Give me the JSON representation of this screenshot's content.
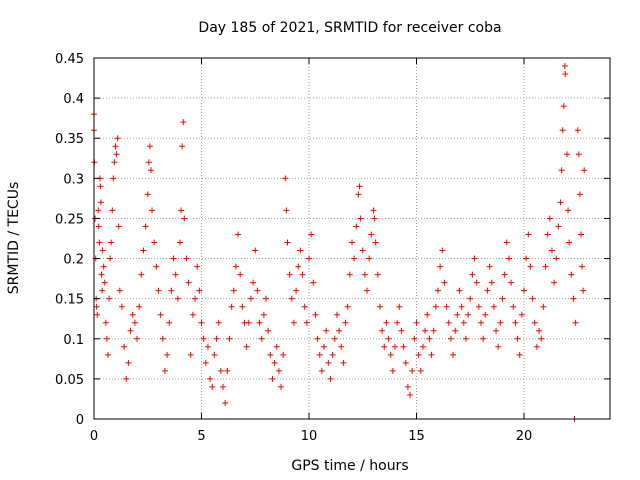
{
  "chart_data": {
    "type": "scatter",
    "title": "Day 185 of 2021, SRMTID for receiver coba",
    "xlabel": "GPS time / hours",
    "ylabel": "SRMTID / TECUs",
    "xlim": [
      0,
      24
    ],
    "ylim": [
      0,
      0.45
    ],
    "xticks": [
      0,
      5,
      10,
      15,
      20
    ],
    "yticks": [
      0,
      0.05,
      0.1,
      0.15,
      0.2,
      0.25,
      0.3,
      0.35,
      0.4,
      0.45
    ],
    "xtick_labels": [
      "0",
      "5",
      "10",
      "15",
      "20"
    ],
    "ytick_labels": [
      "0",
      "0.05",
      "0.1",
      "0.15",
      "0.2",
      "0.25",
      "0.3",
      "0.35",
      "0.4",
      "0.45"
    ],
    "grid": true,
    "marker": "plus",
    "color": "#ff0000",
    "series": [
      {
        "name": "SRMTID",
        "points": [
          [
            0.0,
            0.38
          ],
          [
            0.0,
            0.36
          ],
          [
            0.02,
            0.32
          ],
          [
            0.05,
            0.25
          ],
          [
            0.08,
            0.2
          ],
          [
            0.1,
            0.15
          ],
          [
            0.12,
            0.14
          ],
          [
            0.15,
            0.13
          ],
          [
            0.2,
            0.26
          ],
          [
            0.22,
            0.24
          ],
          [
            0.25,
            0.22
          ],
          [
            0.28,
            0.3
          ],
          [
            0.3,
            0.29
          ],
          [
            0.32,
            0.27
          ],
          [
            0.35,
            0.18
          ],
          [
            0.38,
            0.16
          ],
          [
            0.4,
            0.21
          ],
          [
            0.45,
            0.19
          ],
          [
            0.5,
            0.17
          ],
          [
            0.55,
            0.12
          ],
          [
            0.6,
            0.1
          ],
          [
            0.65,
            0.08
          ],
          [
            0.7,
            0.15
          ],
          [
            0.75,
            0.2
          ],
          [
            0.8,
            0.22
          ],
          [
            0.85,
            0.26
          ],
          [
            0.9,
            0.3
          ],
          [
            0.95,
            0.32
          ],
          [
            1.0,
            0.34
          ],
          [
            1.05,
            0.33
          ],
          [
            1.1,
            0.35
          ],
          [
            1.15,
            0.24
          ],
          [
            1.2,
            0.16
          ],
          [
            1.3,
            0.14
          ],
          [
            1.4,
            0.09
          ],
          [
            1.5,
            0.05
          ],
          [
            1.6,
            0.07
          ],
          [
            1.7,
            0.11
          ],
          [
            1.8,
            0.13
          ],
          [
            1.9,
            0.12
          ],
          [
            2.0,
            0.1
          ],
          [
            2.1,
            0.14
          ],
          [
            2.2,
            0.18
          ],
          [
            2.3,
            0.21
          ],
          [
            2.4,
            0.24
          ],
          [
            2.5,
            0.28
          ],
          [
            2.55,
            0.32
          ],
          [
            2.6,
            0.34
          ],
          [
            2.65,
            0.31
          ],
          [
            2.7,
            0.26
          ],
          [
            2.8,
            0.22
          ],
          [
            2.9,
            0.19
          ],
          [
            3.0,
            0.16
          ],
          [
            3.1,
            0.13
          ],
          [
            3.2,
            0.1
          ],
          [
            3.3,
            0.06
          ],
          [
            3.4,
            0.08
          ],
          [
            3.5,
            0.12
          ],
          [
            3.6,
            0.16
          ],
          [
            3.7,
            0.2
          ],
          [
            3.8,
            0.18
          ],
          [
            3.9,
            0.15
          ],
          [
            4.0,
            0.22
          ],
          [
            4.05,
            0.26
          ],
          [
            4.1,
            0.34
          ],
          [
            4.15,
            0.37
          ],
          [
            4.2,
            0.25
          ],
          [
            4.3,
            0.2
          ],
          [
            4.4,
            0.17
          ],
          [
            4.5,
            0.08
          ],
          [
            4.6,
            0.13
          ],
          [
            4.7,
            0.15
          ],
          [
            4.8,
            0.19
          ],
          [
            4.9,
            0.16
          ],
          [
            5.0,
            0.12
          ],
          [
            5.1,
            0.1
          ],
          [
            5.2,
            0.07
          ],
          [
            5.3,
            0.09
          ],
          [
            5.4,
            0.05
          ],
          [
            5.5,
            0.04
          ],
          [
            5.6,
            0.08
          ],
          [
            5.7,
            0.1
          ],
          [
            5.8,
            0.12
          ],
          [
            5.9,
            0.06
          ],
          [
            6.0,
            0.04
          ],
          [
            6.1,
            0.02
          ],
          [
            6.2,
            0.06
          ],
          [
            6.3,
            0.1
          ],
          [
            6.4,
            0.14
          ],
          [
            6.5,
            0.16
          ],
          [
            6.6,
            0.19
          ],
          [
            6.7,
            0.23
          ],
          [
            6.8,
            0.18
          ],
          [
            6.9,
            0.14
          ],
          [
            7.0,
            0.12
          ],
          [
            7.1,
            0.09
          ],
          [
            7.2,
            0.12
          ],
          [
            7.3,
            0.15
          ],
          [
            7.4,
            0.17
          ],
          [
            7.5,
            0.21
          ],
          [
            7.6,
            0.16
          ],
          [
            7.7,
            0.12
          ],
          [
            7.8,
            0.1
          ],
          [
            7.9,
            0.13
          ],
          [
            8.0,
            0.15
          ],
          [
            8.1,
            0.11
          ],
          [
            8.2,
            0.08
          ],
          [
            8.3,
            0.05
          ],
          [
            8.4,
            0.07
          ],
          [
            8.5,
            0.09
          ],
          [
            8.6,
            0.06
          ],
          [
            8.7,
            0.04
          ],
          [
            8.8,
            0.08
          ],
          [
            8.9,
            0.3
          ],
          [
            8.95,
            0.26
          ],
          [
            9.0,
            0.22
          ],
          [
            9.1,
            0.18
          ],
          [
            9.2,
            0.15
          ],
          [
            9.3,
            0.12
          ],
          [
            9.4,
            0.16
          ],
          [
            9.5,
            0.19
          ],
          [
            9.6,
            0.21
          ],
          [
            9.7,
            0.18
          ],
          [
            9.8,
            0.14
          ],
          [
            9.9,
            0.12
          ],
          [
            10.0,
            0.2
          ],
          [
            10.1,
            0.23
          ],
          [
            10.2,
            0.17
          ],
          [
            10.3,
            0.13
          ],
          [
            10.4,
            0.1
          ],
          [
            10.5,
            0.08
          ],
          [
            10.6,
            0.06
          ],
          [
            10.7,
            0.09
          ],
          [
            10.8,
            0.11
          ],
          [
            10.9,
            0.07
          ],
          [
            11.0,
            0.05
          ],
          [
            11.1,
            0.08
          ],
          [
            11.2,
            0.1
          ],
          [
            11.3,
            0.13
          ],
          [
            11.4,
            0.11
          ],
          [
            11.5,
            0.09
          ],
          [
            11.6,
            0.07
          ],
          [
            11.7,
            0.12
          ],
          [
            11.8,
            0.14
          ],
          [
            11.9,
            0.18
          ],
          [
            12.0,
            0.22
          ],
          [
            12.1,
            0.2
          ],
          [
            12.2,
            0.24
          ],
          [
            12.3,
            0.28
          ],
          [
            12.35,
            0.29
          ],
          [
            12.4,
            0.25
          ],
          [
            12.5,
            0.21
          ],
          [
            12.6,
            0.18
          ],
          [
            12.7,
            0.16
          ],
          [
            12.8,
            0.2
          ],
          [
            12.9,
            0.23
          ],
          [
            13.0,
            0.26
          ],
          [
            13.05,
            0.25
          ],
          [
            13.1,
            0.22
          ],
          [
            13.2,
            0.18
          ],
          [
            13.3,
            0.14
          ],
          [
            13.4,
            0.11
          ],
          [
            13.5,
            0.09
          ],
          [
            13.6,
            0.12
          ],
          [
            13.7,
            0.1
          ],
          [
            13.8,
            0.08
          ],
          [
            13.9,
            0.06
          ],
          [
            14.0,
            0.09
          ],
          [
            14.1,
            0.12
          ],
          [
            14.2,
            0.14
          ],
          [
            14.3,
            0.11
          ],
          [
            14.4,
            0.09
          ],
          [
            14.5,
            0.07
          ],
          [
            14.6,
            0.04
          ],
          [
            14.7,
            0.03
          ],
          [
            14.8,
            0.06
          ],
          [
            14.9,
            0.1
          ],
          [
            15.0,
            0.12
          ],
          [
            15.1,
            0.08
          ],
          [
            15.2,
            0.06
          ],
          [
            15.3,
            0.09
          ],
          [
            15.4,
            0.11
          ],
          [
            15.5,
            0.13
          ],
          [
            15.6,
            0.1
          ],
          [
            15.7,
            0.08
          ],
          [
            15.8,
            0.11
          ],
          [
            15.9,
            0.14
          ],
          [
            16.0,
            0.16
          ],
          [
            16.1,
            0.19
          ],
          [
            16.2,
            0.21
          ],
          [
            16.3,
            0.17
          ],
          [
            16.4,
            0.14
          ],
          [
            16.5,
            0.12
          ],
          [
            16.6,
            0.1
          ],
          [
            16.7,
            0.08
          ],
          [
            16.8,
            0.11
          ],
          [
            16.9,
            0.13
          ],
          [
            17.0,
            0.16
          ],
          [
            17.1,
            0.14
          ],
          [
            17.2,
            0.12
          ],
          [
            17.3,
            0.1
          ],
          [
            17.4,
            0.13
          ],
          [
            17.5,
            0.15
          ],
          [
            17.6,
            0.18
          ],
          [
            17.7,
            0.2
          ],
          [
            17.8,
            0.17
          ],
          [
            17.9,
            0.14
          ],
          [
            18.0,
            0.12
          ],
          [
            18.1,
            0.1
          ],
          [
            18.2,
            0.13
          ],
          [
            18.3,
            0.16
          ],
          [
            18.4,
            0.19
          ],
          [
            18.5,
            0.17
          ],
          [
            18.6,
            0.14
          ],
          [
            18.7,
            0.11
          ],
          [
            18.8,
            0.09
          ],
          [
            18.9,
            0.12
          ],
          [
            19.0,
            0.15
          ],
          [
            19.1,
            0.18
          ],
          [
            19.2,
            0.22
          ],
          [
            19.3,
            0.2
          ],
          [
            19.4,
            0.17
          ],
          [
            19.5,
            0.14
          ],
          [
            19.6,
            0.12
          ],
          [
            19.7,
            0.1
          ],
          [
            19.8,
            0.08
          ],
          [
            19.9,
            0.13
          ],
          [
            20.0,
            0.16
          ],
          [
            20.1,
            0.2
          ],
          [
            20.2,
            0.23
          ],
          [
            20.3,
            0.19
          ],
          [
            20.4,
            0.15
          ],
          [
            20.5,
            0.12
          ],
          [
            20.6,
            0.09
          ],
          [
            20.7,
            0.11
          ],
          [
            20.8,
            0.1
          ],
          [
            20.9,
            0.14
          ],
          [
            21.0,
            0.19
          ],
          [
            21.1,
            0.23
          ],
          [
            21.2,
            0.25
          ],
          [
            21.3,
            0.21
          ],
          [
            21.4,
            0.17
          ],
          [
            21.5,
            0.2
          ],
          [
            21.6,
            0.24
          ],
          [
            21.7,
            0.27
          ],
          [
            21.75,
            0.31
          ],
          [
            21.8,
            0.36
          ],
          [
            21.85,
            0.39
          ],
          [
            21.9,
            0.44
          ],
          [
            21.92,
            0.43
          ],
          [
            22.0,
            0.33
          ],
          [
            22.05,
            0.26
          ],
          [
            22.1,
            0.22
          ],
          [
            22.2,
            0.18
          ],
          [
            22.3,
            0.15
          ],
          [
            22.35,
            0.0
          ],
          [
            22.4,
            0.12
          ],
          [
            22.5,
            0.36
          ],
          [
            22.55,
            0.33
          ],
          [
            22.6,
            0.28
          ],
          [
            22.65,
            0.23
          ],
          [
            22.7,
            0.19
          ],
          [
            22.75,
            0.16
          ],
          [
            22.8,
            0.31
          ]
        ]
      }
    ]
  }
}
